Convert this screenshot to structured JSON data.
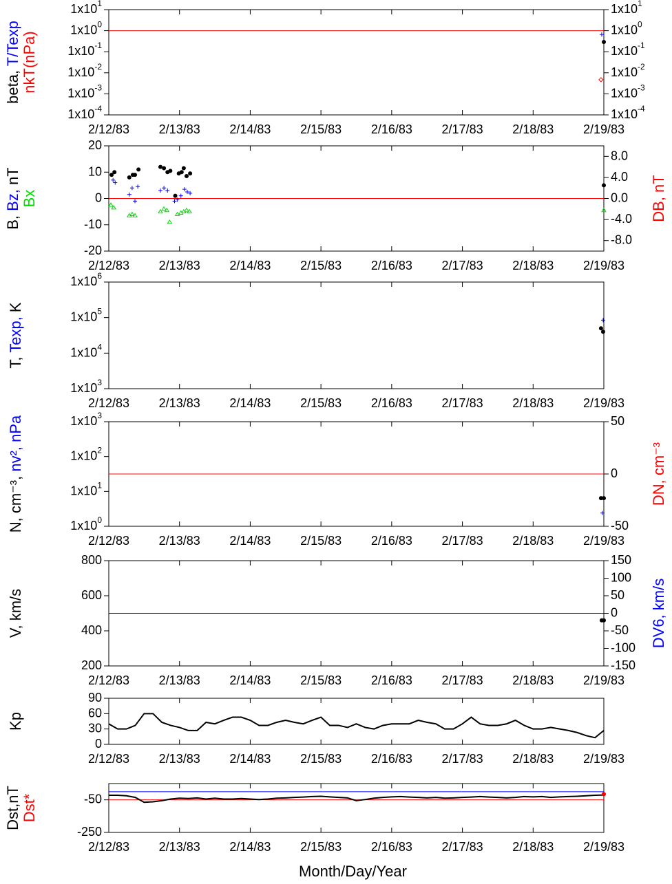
{
  "chart_data": [
    {
      "type": "scatter",
      "log_y": true,
      "xlim": [
        0,
        7
      ],
      "xticks": [
        {
          "value": 0,
          "label": "2/12/83"
        },
        {
          "value": 1,
          "label": "2/13/83"
        },
        {
          "value": 2,
          "label": "2/14/83"
        },
        {
          "value": 3,
          "label": "2/15/83"
        },
        {
          "value": 4,
          "label": "2/16/83"
        },
        {
          "value": 5,
          "label": "2/17/83"
        },
        {
          "value": 6,
          "label": "2/18/83"
        },
        {
          "value": 7,
          "label": "2/19/83"
        }
      ],
      "ylim": [
        0.0001,
        10
      ],
      "yticks": [
        {
          "value": 10,
          "label": "1x10",
          "power": "1"
        },
        {
          "value": 1,
          "label": "1x10",
          "power": "0"
        },
        {
          "value": 0.1,
          "label": "1x10",
          "power": "-1"
        },
        {
          "value": 0.01,
          "label": "1x10",
          "power": "-2"
        },
        {
          "value": 0.001,
          "label": "1x10",
          "power": "-3"
        },
        {
          "value": 0.0001,
          "label": "1x10",
          "power": "-4"
        }
      ],
      "mirror_yticks": true,
      "ylabel": [
        [
          {
            "text": "beta, ",
            "color": "#000000"
          },
          {
            "text": "T/Texp",
            "color": "#0000ff"
          }
        ],
        [
          {
            "text": "nkT(nPa)",
            "color": "#ff0000"
          }
        ]
      ],
      "reference_lines": [
        {
          "value": 1,
          "color": "#ff0000"
        }
      ],
      "series": [
        {
          "color": "#0000ff",
          "marker": "plus",
          "x": [
            6.97
          ],
          "values": [
            0.66
          ]
        },
        {
          "color": "#000000",
          "marker": "dot",
          "x": [
            7.0
          ],
          "values": [
            0.29
          ]
        },
        {
          "color": "#ff0000",
          "marker": "diamond",
          "x": [
            6.96
          ],
          "values": [
            0.0047
          ]
        }
      ]
    },
    {
      "type": "scatter",
      "xlim": [
        0,
        7
      ],
      "xticks": [
        {
          "value": 0,
          "label": "2/12/83"
        },
        {
          "value": 1,
          "label": "2/13/83"
        },
        {
          "value": 2,
          "label": "2/14/83"
        },
        {
          "value": 3,
          "label": "2/15/83"
        },
        {
          "value": 4,
          "label": "2/16/83"
        },
        {
          "value": 5,
          "label": "2/17/83"
        },
        {
          "value": 6,
          "label": "2/18/83"
        },
        {
          "value": 7,
          "label": "2/19/83"
        }
      ],
      "ylim": [
        -20,
        20
      ],
      "yticks": [
        -20,
        -10,
        0,
        10,
        20
      ],
      "y2lim": [
        -10,
        10
      ],
      "y2ticks": [
        {
          "value": 8,
          "label": "8.0"
        },
        {
          "value": 4,
          "label": "4.0"
        },
        {
          "value": 0,
          "label": "0.0"
        },
        {
          "value": -4,
          "label": "-4.0"
        },
        {
          "value": -8,
          "label": "-8.0"
        }
      ],
      "ylabel": [
        [
          {
            "text": "B, ",
            "color": "#000000"
          },
          {
            "text": "Bz,",
            "color": "#0000ff"
          },
          {
            "text": " nT",
            "color": "#000000"
          }
        ],
        [
          {
            "text": "Bx",
            "color": "#00dd00"
          }
        ]
      ],
      "y2label": [
        [
          {
            "text": "DB, nT",
            "color": "#ff0000"
          }
        ]
      ],
      "reference_lines": [
        {
          "value": 0,
          "color": "#ff0000",
          "axis": "y2"
        }
      ],
      "series": [
        {
          "color": "#000000",
          "marker": "dot",
          "x": [
            0.04,
            0.08,
            0.29,
            0.34,
            0.37,
            0.42,
            0.73,
            0.78,
            0.83,
            0.87,
            0.94,
            0.99,
            1.03,
            1.06,
            1.1,
            1.15,
            7.0
          ],
          "values": [
            9,
            10,
            8,
            9,
            9,
            11,
            12,
            11.5,
            10,
            10.5,
            1,
            9.5,
            10,
            11.5,
            8.5,
            9.5,
            5
          ]
        },
        {
          "color": "#0000ff",
          "marker": "plus",
          "x": [
            0.06,
            0.09,
            0.29,
            0.33,
            0.37,
            0.41,
            0.73,
            0.78,
            0.83,
            0.93,
            0.97,
            1.02,
            1.07,
            1.11,
            1.15
          ],
          "values": [
            7,
            6,
            1.5,
            4,
            -1,
            4.5,
            3,
            4,
            3,
            -1,
            -0.5,
            1,
            3.5,
            2.5,
            2
          ]
        },
        {
          "color": "#00dd00",
          "marker": "triangle",
          "x": [
            0.03,
            0.07,
            0.29,
            0.33,
            0.37,
            0.73,
            0.78,
            0.82,
            0.86,
            0.97,
            1.02,
            1.06,
            1.1,
            1.14,
            7.0
          ],
          "values": [
            -2.5,
            -3.5,
            -6.5,
            -6,
            -6.5,
            -5,
            -4,
            -4.5,
            -9,
            -6,
            -5.5,
            -5,
            -4.5,
            -5,
            -4.5
          ]
        }
      ]
    },
    {
      "type": "scatter",
      "log_y": true,
      "xlim": [
        0,
        7
      ],
      "xticks": [
        {
          "value": 0,
          "label": "2/12/83"
        },
        {
          "value": 1,
          "label": "2/13/83"
        },
        {
          "value": 2,
          "label": "2/14/83"
        },
        {
          "value": 3,
          "label": "2/15/83"
        },
        {
          "value": 4,
          "label": "2/16/83"
        },
        {
          "value": 5,
          "label": "2/17/83"
        },
        {
          "value": 6,
          "label": "2/18/83"
        },
        {
          "value": 7,
          "label": "2/19/83"
        }
      ],
      "ylim": [
        1000,
        1000000
      ],
      "yticks": [
        {
          "value": 1000000,
          "label": "1x10",
          "power": "6"
        },
        {
          "value": 100000,
          "label": "1x10",
          "power": "5"
        },
        {
          "value": 10000,
          "label": "1x10",
          "power": "4"
        },
        {
          "value": 1000,
          "label": "1x10",
          "power": "3"
        }
      ],
      "ylabel": [
        [
          {
            "text": "T, ",
            "color": "#000000"
          },
          {
            "text": "Texp,",
            "color": "#0000ff"
          },
          {
            "text": " K",
            "color": "#000000"
          }
        ]
      ],
      "series": [
        {
          "color": "#0000ff",
          "marker": "plus",
          "x": [
            6.99
          ],
          "values": [
            85000
          ]
        },
        {
          "color": "#000000",
          "marker": "dot",
          "x": [
            6.96,
            6.99
          ],
          "values": [
            50000,
            40000
          ]
        }
      ]
    },
    {
      "type": "scatter",
      "log_y": true,
      "xlim": [
        0,
        7
      ],
      "xticks": [
        {
          "value": 0,
          "label": "2/12/83"
        },
        {
          "value": 1,
          "label": "2/13/83"
        },
        {
          "value": 2,
          "label": "2/14/83"
        },
        {
          "value": 3,
          "label": "2/15/83"
        },
        {
          "value": 4,
          "label": "2/16/83"
        },
        {
          "value": 5,
          "label": "2/17/83"
        },
        {
          "value": 6,
          "label": "2/18/83"
        },
        {
          "value": 7,
          "label": "2/19/83"
        }
      ],
      "ylim": [
        1,
        1000
      ],
      "yticks": [
        {
          "value": 1000,
          "label": "1x10",
          "power": "3"
        },
        {
          "value": 100,
          "label": "1x10",
          "power": "2"
        },
        {
          "value": 10,
          "label": "1x10",
          "power": "1"
        },
        {
          "value": 1,
          "label": "1x10",
          "power": "0"
        }
      ],
      "y2lim": [
        -50,
        50
      ],
      "y2ticks": [
        50,
        0,
        -50
      ],
      "ylabel": [
        [
          {
            "text": "N, cm⁻³, ",
            "color": "#000000"
          },
          {
            "text": "nv², nPa",
            "color": "#0000ff"
          }
        ]
      ],
      "y2label": [
        [
          {
            "text": "DN, cm⁻³",
            "color": "#ff0000"
          }
        ]
      ],
      "reference_lines": [
        {
          "value": 0,
          "color": "#ff0000",
          "axis": "y2"
        }
      ],
      "series": [
        {
          "color": "#000000",
          "marker": "dot",
          "x": [
            6.96,
            7.0
          ],
          "values": [
            6.4,
            6.4
          ]
        },
        {
          "color": "#0000ff",
          "marker": "plus",
          "x": [
            6.98
          ],
          "values": [
            2.4
          ]
        }
      ]
    },
    {
      "type": "scatter",
      "xlim": [
        0,
        7
      ],
      "xticks": [
        {
          "value": 0,
          "label": "2/12/83"
        },
        {
          "value": 1,
          "label": "2/13/83"
        },
        {
          "value": 2,
          "label": "2/14/83"
        },
        {
          "value": 3,
          "label": "2/15/83"
        },
        {
          "value": 4,
          "label": "2/16/83"
        },
        {
          "value": 5,
          "label": "2/17/83"
        },
        {
          "value": 6,
          "label": "2/18/83"
        },
        {
          "value": 7,
          "label": "2/19/83"
        }
      ],
      "ylim": [
        200,
        800
      ],
      "yticks": [
        200,
        400,
        600,
        800
      ],
      "y2lim": [
        -150,
        150
      ],
      "y2ticks": [
        -150,
        -100,
        -50,
        0,
        50,
        100,
        150
      ],
      "ylabel": [
        [
          {
            "text": "V, km/s",
            "color": "#000000"
          }
        ]
      ],
      "y2label": [
        [
          {
            "text": "DV6, km/s",
            "color": "#0000ff"
          }
        ]
      ],
      "reference_lines": [
        {
          "value": 0,
          "color": "#0000ff",
          "axis": "y2"
        }
      ],
      "series": [
        {
          "color": "#000000",
          "marker": "dot",
          "x": [
            6.97,
            7.0
          ],
          "values": [
            460,
            460
          ]
        }
      ]
    },
    {
      "type": "line",
      "xlim": [
        0,
        7
      ],
      "xticks": [
        {
          "value": 0,
          "label": "2/12/83"
        },
        {
          "value": 1,
          "label": "2/13/83"
        },
        {
          "value": 2,
          "label": "2/14/83"
        },
        {
          "value": 3,
          "label": "2/15/83"
        },
        {
          "value": 4,
          "label": "2/16/83"
        },
        {
          "value": 5,
          "label": "2/17/83"
        },
        {
          "value": 6,
          "label": "2/18/83"
        },
        {
          "value": 7,
          "label": "2/19/83"
        }
      ],
      "ylim": [
        0,
        90
      ],
      "yticks": [
        0,
        30,
        60,
        90
      ],
      "ylabel": [
        [
          {
            "text": "Kp",
            "color": "#000000"
          }
        ]
      ],
      "series": [
        {
          "color": "#000000",
          "marker": "line",
          "x": [
            0,
            0.125,
            0.25,
            0.375,
            0.5,
            0.625,
            0.75,
            0.875,
            1,
            1.125,
            1.25,
            1.375,
            1.5,
            1.625,
            1.75,
            1.875,
            2,
            2.125,
            2.25,
            2.375,
            2.5,
            2.625,
            2.75,
            2.875,
            3,
            3.125,
            3.25,
            3.375,
            3.5,
            3.625,
            3.75,
            3.875,
            4,
            4.125,
            4.25,
            4.375,
            4.5,
            4.625,
            4.75,
            4.875,
            5,
            5.125,
            5.25,
            5.375,
            5.5,
            5.625,
            5.75,
            5.875,
            6,
            6.125,
            6.25,
            6.375,
            6.5,
            6.625,
            6.75,
            6.875,
            7
          ],
          "values": [
            40,
            30,
            30,
            37,
            60,
            60,
            43,
            37,
            33,
            27,
            27,
            43,
            40,
            47,
            53,
            53,
            47,
            37,
            37,
            43,
            47,
            43,
            40,
            47,
            53,
            37,
            37,
            33,
            40,
            33,
            30,
            37,
            40,
            40,
            40,
            47,
            43,
            40,
            30,
            30,
            40,
            53,
            40,
            37,
            37,
            40,
            47,
            37,
            30,
            30,
            33,
            30,
            27,
            23,
            17,
            13,
            27
          ]
        }
      ]
    },
    {
      "type": "line",
      "xlim": [
        0,
        7
      ],
      "xticks": [
        {
          "value": 0,
          "label": "2/12/83"
        },
        {
          "value": 1,
          "label": "2/13/83"
        },
        {
          "value": 2,
          "label": "2/14/83"
        },
        {
          "value": 3,
          "label": "2/15/83"
        },
        {
          "value": 4,
          "label": "2/16/83"
        },
        {
          "value": 5,
          "label": "2/17/83"
        },
        {
          "value": 6,
          "label": "2/18/83"
        },
        {
          "value": 7,
          "label": "2/19/83"
        }
      ],
      "ylim": [
        -250,
        50
      ],
      "yticks": [
        -250,
        -50
      ],
      "ylabel": [
        [
          {
            "text": "Dst,nT",
            "color": "#000000"
          }
        ],
        [
          {
            "text": "Dst*",
            "color": "#ff0000"
          }
        ]
      ],
      "reference_lines": [
        {
          "value": 0,
          "color": "#0000ff"
        },
        {
          "value": -50,
          "color": "#ff0000"
        }
      ],
      "xlabel": "Month/Day/Year",
      "series": [
        {
          "color": "#000000",
          "marker": "line",
          "x": [
            0,
            0.125,
            0.25,
            0.375,
            0.5,
            0.625,
            0.75,
            0.875,
            1,
            1.125,
            1.25,
            1.375,
            1.5,
            1.625,
            1.75,
            1.875,
            2,
            2.125,
            2.25,
            2.375,
            2.5,
            2.625,
            2.75,
            2.875,
            3,
            3.125,
            3.25,
            3.375,
            3.5,
            3.625,
            3.75,
            3.875,
            4,
            4.125,
            4.25,
            4.375,
            4.5,
            4.625,
            4.75,
            4.875,
            5,
            5.125,
            5.25,
            5.375,
            5.5,
            5.625,
            5.75,
            5.875,
            6,
            6.125,
            6.25,
            6.375,
            6.5,
            6.625,
            6.75,
            6.875,
            7
          ],
          "values": [
            -22,
            -22,
            -25,
            -35,
            -65,
            -62,
            -55,
            -45,
            -40,
            -42,
            -38,
            -45,
            -40,
            -45,
            -45,
            -42,
            -45,
            -48,
            -45,
            -40,
            -38,
            -35,
            -33,
            -30,
            -28,
            -32,
            -35,
            -38,
            -55,
            -48,
            -40,
            -35,
            -32,
            -30,
            -33,
            -35,
            -38,
            -35,
            -40,
            -38,
            -35,
            -33,
            -30,
            -33,
            -35,
            -38,
            -35,
            -30,
            -32,
            -30,
            -35,
            -32,
            -30,
            -28,
            -25,
            -22,
            -20
          ]
        },
        {
          "color": "#ff0000",
          "marker": "dot",
          "x": [
            7.0
          ],
          "values": [
            -15
          ]
        }
      ]
    }
  ]
}
